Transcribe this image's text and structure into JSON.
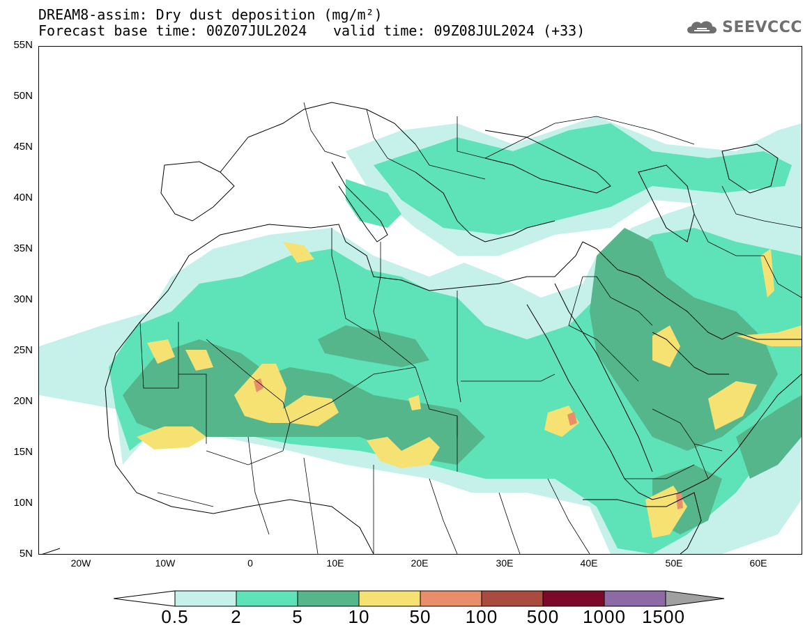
{
  "header": {
    "title_line1": "DREAM8-assim: Dry dust deposition (mg/m²)",
    "title_line2": "Forecast base time: 00Z07JUL2024",
    "valid_time": "valid time: 09Z08JUL2024 (+33)"
  },
  "logo": {
    "text": "SEEVCCC",
    "icon": "cloud-icon"
  },
  "map": {
    "projection": "lat-lon",
    "lon_range": [
      -25,
      65
    ],
    "lat_range": [
      5,
      55
    ],
    "lat_labels": [
      "55N",
      "50N",
      "45N",
      "40N",
      "35N",
      "30N",
      "25N",
      "20N",
      "15N",
      "10N",
      "5N"
    ],
    "lon_labels": [
      "20W",
      "10W",
      "0",
      "10E",
      "20E",
      "30E",
      "40E",
      "50E",
      "60E"
    ]
  },
  "legend": {
    "unit": "mg/m²",
    "labels": [
      "0.5",
      "2",
      "5",
      "10",
      "50",
      "100",
      "500",
      "1000",
      "1500"
    ],
    "colors": {
      "under_0_5": "#ffffff",
      "c_0_5_2": "#c6f1ea",
      "c_2_5": "#5ee2b8",
      "c_5_10": "#55b68c",
      "c_10_50": "#f6e272",
      "c_50_100": "#e88e6a",
      "c_100_500": "#aa4b3f",
      "c_500_1000": "#7b0a2a",
      "c_1000_1500": "#8d6aa4",
      "over_1500": "#a0a0a0"
    }
  }
}
